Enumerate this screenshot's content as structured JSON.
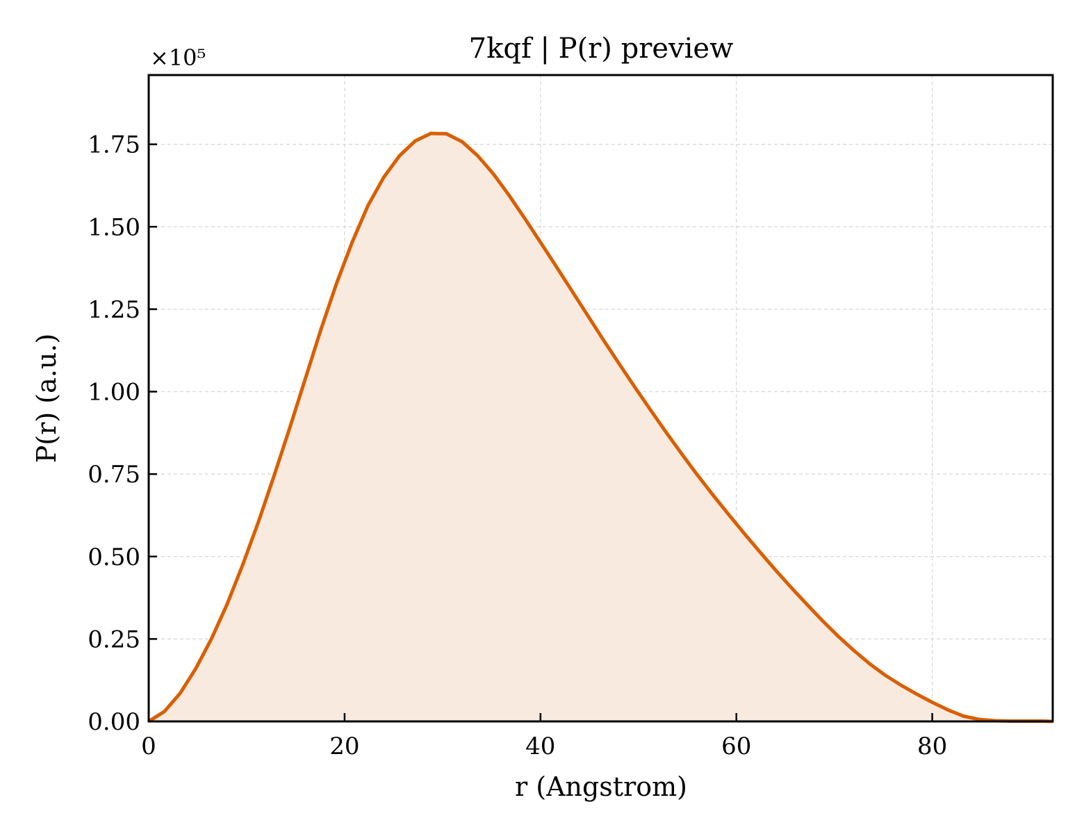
{
  "chart_data": {
    "type": "area",
    "title": "7kqf | P(r) preview",
    "xlabel": "r (Angstrom)",
    "ylabel": "P(r) (a.u.)",
    "y_multiplier": "×10⁵",
    "xlim": [
      0,
      92.3
    ],
    "ylim": [
      0,
      1.96
    ],
    "xticks": [
      0,
      20,
      40,
      60,
      80
    ],
    "yticks": [
      0.0,
      0.25,
      0.5,
      0.75,
      1.0,
      1.25,
      1.5,
      1.75
    ],
    "xtick_labels": [
      "0",
      "20",
      "40",
      "60",
      "80"
    ],
    "ytick_labels": [
      "0.00",
      "0.25",
      "0.50",
      "0.75",
      "1.00",
      "1.25",
      "1.50",
      "1.75"
    ],
    "grid": true,
    "series": [
      {
        "x": [
          0,
          1.6,
          3.2,
          4.8,
          6.4,
          8.0,
          9.6,
          11.2,
          12.8,
          14.4,
          16.0,
          17.6,
          19.2,
          20.8,
          22.4,
          24.0,
          25.6,
          27.2,
          28.8,
          30.4,
          32.0,
          33.6,
          35.2,
          36.8,
          38.4,
          40.0,
          41.6,
          43.2,
          44.8,
          46.4,
          48.0,
          49.6,
          51.2,
          52.8,
          54.4,
          56.0,
          57.6,
          59.2,
          60.8,
          62.4,
          64.0,
          65.6,
          67.2,
          68.8,
          70.4,
          72.0,
          73.6,
          75.2,
          76.8,
          78.4,
          80.0,
          81.6,
          83.2,
          84.8,
          86.4,
          88.0,
          89.6,
          91.2,
          92.3
        ],
        "values": [
          0.0,
          0.03,
          0.085,
          0.16,
          0.25,
          0.355,
          0.475,
          0.605,
          0.745,
          0.89,
          1.04,
          1.19,
          1.33,
          1.455,
          1.565,
          1.65,
          1.715,
          1.76,
          1.783,
          1.782,
          1.758,
          1.715,
          1.66,
          1.595,
          1.525,
          1.453,
          1.38,
          1.306,
          1.232,
          1.158,
          1.086,
          1.015,
          0.946,
          0.878,
          0.812,
          0.748,
          0.687,
          0.628,
          0.57,
          0.514,
          0.459,
          0.406,
          0.355,
          0.305,
          0.258,
          0.215,
          0.175,
          0.14,
          0.11,
          0.083,
          0.058,
          0.035,
          0.016,
          0.006,
          0.002,
          0.001,
          0.001,
          0.001,
          0.0
        ]
      }
    ],
    "colors": {
      "line": "#d95f02",
      "fill": "#f9eadf",
      "grid": "#d6d6d6",
      "axis": "#000000"
    }
  }
}
